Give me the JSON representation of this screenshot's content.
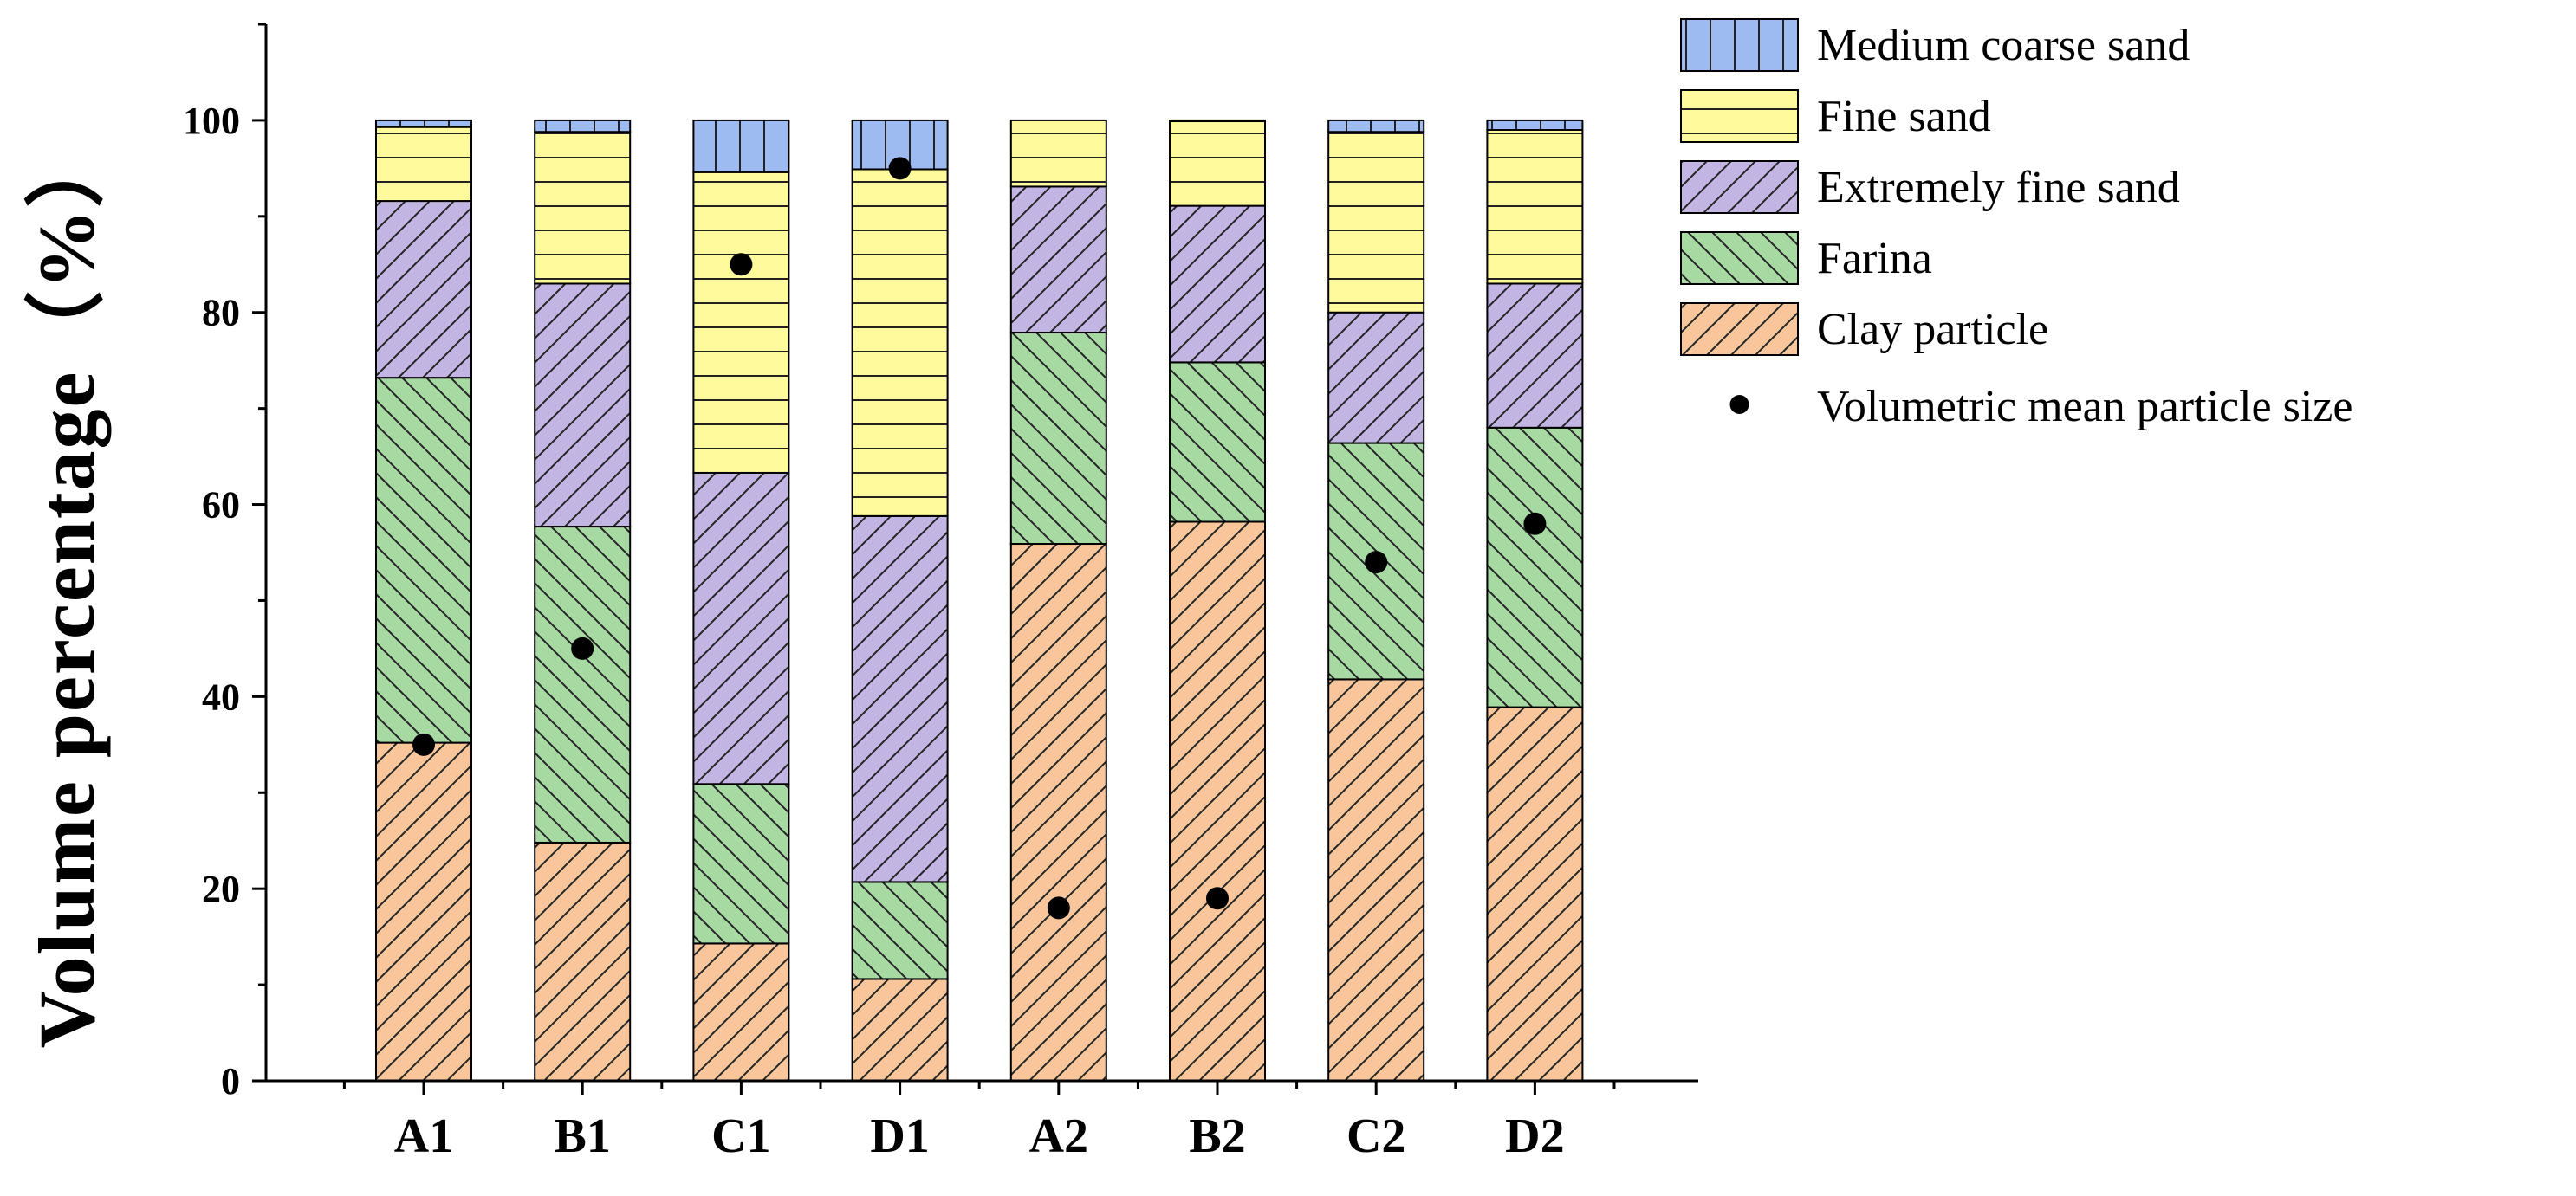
{
  "chart_data": {
    "type": "bar",
    "stacked": true,
    "ylabel": "Volume  percentage（%）",
    "xlabel": "",
    "title": "",
    "ylim": [
      0,
      110
    ],
    "yticks": [
      0,
      20,
      40,
      60,
      80,
      100
    ],
    "ytick_labels": [
      "0",
      "20",
      "40",
      "60",
      "80",
      "100"
    ],
    "grid": false,
    "legend_position": "top-right",
    "categories": [
      "A1",
      "B1",
      "C1",
      "D1",
      "A2",
      "B2",
      "C2",
      "D2"
    ],
    "series": [
      {
        "name": "Clay particle",
        "color": "#F8C69A",
        "pattern": "diag-fwd",
        "values": [
          35.2,
          24.8,
          14.3,
          10.6,
          55.9,
          58.2,
          41.8,
          38.9
        ]
      },
      {
        "name": "Farina",
        "color": "#A7D9A3",
        "pattern": "diag-back",
        "values": [
          38.0,
          32.9,
          16.6,
          10.1,
          22.0,
          16.6,
          24.6,
          29.1
        ]
      },
      {
        "name": "Extremely fine sand",
        "color": "#C2B4E3",
        "pattern": "diag-fwd",
        "values": [
          18.4,
          25.3,
          32.4,
          38.1,
          15.2,
          16.3,
          13.6,
          15.0
        ]
      },
      {
        "name": "Fine sand",
        "color": "#FFFA9C",
        "pattern": "horiz",
        "values": [
          7.7,
          15.8,
          31.3,
          36.1,
          6.9,
          8.8,
          18.8,
          16.0
        ]
      },
      {
        "name": "Medium coarse sand",
        "color": "#9DBBF0",
        "pattern": "vert",
        "values": [
          0.7,
          1.2,
          5.4,
          5.1,
          0.0,
          0.1,
          1.2,
          1.0
        ]
      }
    ],
    "scatter_series": {
      "name": "Volumetric mean particle size",
      "color": "#000000",
      "values": [
        35,
        45,
        85,
        95,
        18,
        19,
        54,
        58
      ]
    }
  }
}
